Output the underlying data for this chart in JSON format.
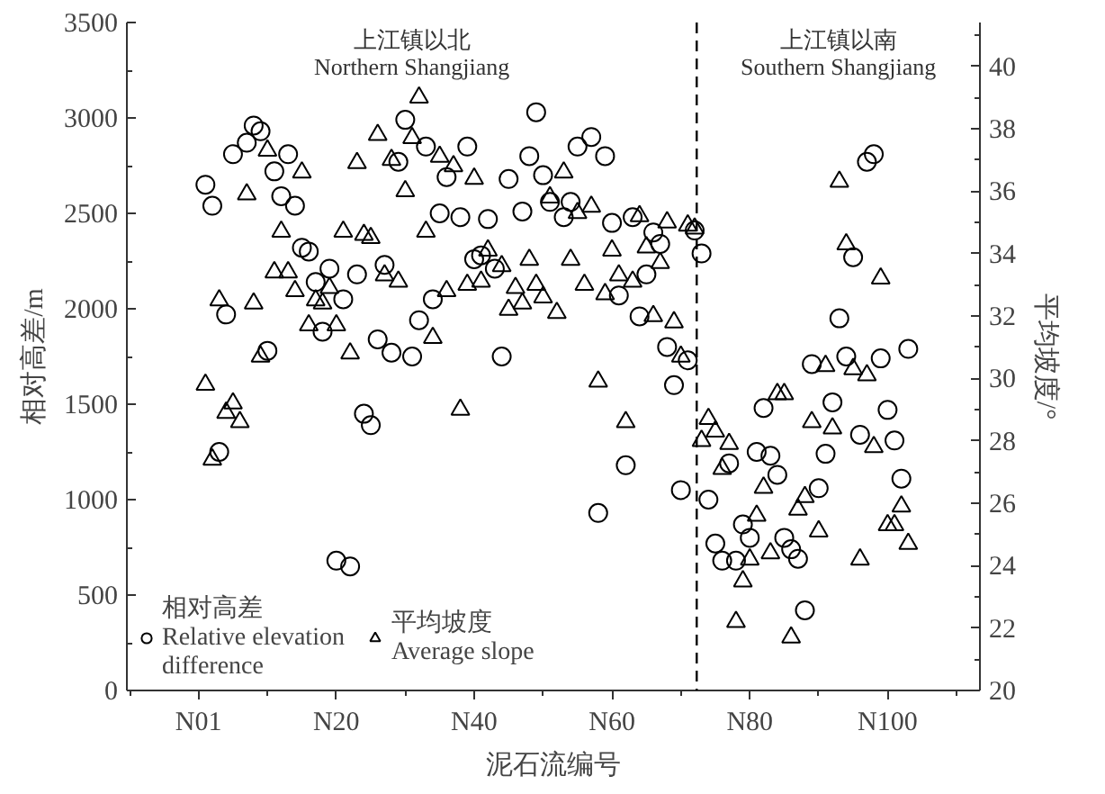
{
  "chart_data": {
    "type": "scatter",
    "xlabel": "泥石流编号",
    "ylabel": "相对高差/m",
    "y2label": "平均坡度/°",
    "categories": [
      "N01",
      null,
      null,
      null,
      null,
      null,
      null,
      null,
      null,
      null,
      null,
      null,
      null,
      null,
      null,
      null,
      null,
      null,
      null,
      null,
      "N20",
      null,
      null,
      null,
      null,
      null,
      null,
      null,
      null,
      null,
      null,
      null,
      null,
      null,
      null,
      null,
      null,
      null,
      null,
      null,
      "N40",
      null,
      null,
      null,
      null,
      null,
      null,
      null,
      null,
      null,
      null,
      null,
      null,
      null,
      null,
      null,
      null,
      null,
      null,
      null,
      "N60",
      null,
      null,
      null,
      null,
      null,
      null,
      null,
      null,
      null,
      null,
      null,
      null,
      null,
      null,
      null,
      null,
      null,
      null,
      null,
      "N80",
      null,
      null,
      null,
      null,
      null,
      null,
      null,
      null,
      null,
      null,
      null,
      null,
      null,
      null,
      null,
      null,
      null,
      null,
      null,
      "N100",
      null,
      null,
      null
    ],
    "ylim": [
      0,
      3500
    ],
    "yticks": [
      0,
      500,
      1000,
      1500,
      2000,
      2500,
      3000,
      3500
    ],
    "y2lim": [
      20,
      41.4
    ],
    "y2ticks": [
      20,
      22,
      24,
      26,
      28,
      30,
      32,
      34,
      36,
      38,
      40
    ],
    "legend": "bottom left",
    "annotations": [
      "上江镇以北\nNorthern Shangjiang",
      "上江镇以南\nSouthern Shangjiang"
    ],
    "series": [
      {
        "name": "相对高差\nRelative elevation\ndifference",
        "color": "#000000",
        "marker": "circle",
        "values": [
          null,
          2650,
          2540,
          1250,
          1970,
          2810,
          null,
          2870,
          2960,
          2930,
          1780,
          2720,
          2590,
          2810,
          2540,
          2320,
          2300,
          2140,
          1880,
          2210,
          680,
          2050,
          650,
          2180,
          1450,
          1390,
          1840,
          2230,
          1770,
          2770,
          2990,
          1750,
          1940,
          2850,
          2050,
          2500,
          2690,
          null,
          2480,
          2850,
          2260,
          2280,
          2470,
          2210,
          1750,
          2680,
          null,
          2510,
          2800,
          3030,
          2700,
          2560,
          null,
          2480,
          2560,
          2850,
          null,
          2900,
          930,
          2800,
          2450,
          2070,
          1180,
          2480,
          1960,
          2180,
          2400,
          2340,
          1800,
          1600,
          1050,
          1730,
          2410,
          2290,
          1000,
          770,
          680,
          1190,
          680,
          870,
          800,
          1250,
          1480,
          1230,
          1130,
          800,
          740,
          690,
          420,
          1710,
          1060,
          1240,
          1510,
          1950,
          1750,
          2270,
          1340,
          2770,
          2810,
          1740,
          1470,
          1310,
          1110,
          1790
        ]
      },
      {
        "name": "平均坡度\nAverage slope",
        "color": "#000000",
        "marker": "triangle",
        "axis": "y2",
        "values": [
          null,
          29.8,
          27.4,
          32.5,
          28.9,
          29.2,
          28.6,
          35.9,
          32.4,
          30.7,
          37.3,
          33.4,
          34.7,
          33.4,
          32.8,
          36.6,
          31.7,
          32.5,
          32.4,
          32.9,
          31.7,
          34.7,
          30.8,
          36.9,
          34.6,
          34.5,
          37.8,
          33.3,
          37.0,
          33.1,
          36.0,
          37.7,
          39.0,
          34.7,
          31.3,
          37.1,
          32.8,
          36.8,
          29.0,
          33.0,
          36.4,
          33.1,
          34.1,
          null,
          33.6,
          32.2,
          32.9,
          32.4,
          33.8,
          33.0,
          32.6,
          35.8,
          32.1,
          36.6,
          33.8,
          35.3,
          33.0,
          35.5,
          29.9,
          32.7,
          34.1,
          33.3,
          28.6,
          33.1,
          35.2,
          34.2,
          32.0,
          33.7,
          35.0,
          31.8,
          30.7,
          34.9,
          34.8,
          28.0,
          28.7,
          28.3,
          27.1,
          27.9,
          22.2,
          23.5,
          24.2,
          25.6,
          26.5,
          24.4,
          29.5,
          29.5,
          21.7,
          25.8,
          26.2,
          28.6,
          25.1,
          30.4,
          28.4,
          36.3,
          34.3,
          30.3,
          24.2,
          30.1,
          27.8,
          33.2,
          25.3,
          25.3,
          25.9,
          24.7
        ]
      }
    ]
  }
}
